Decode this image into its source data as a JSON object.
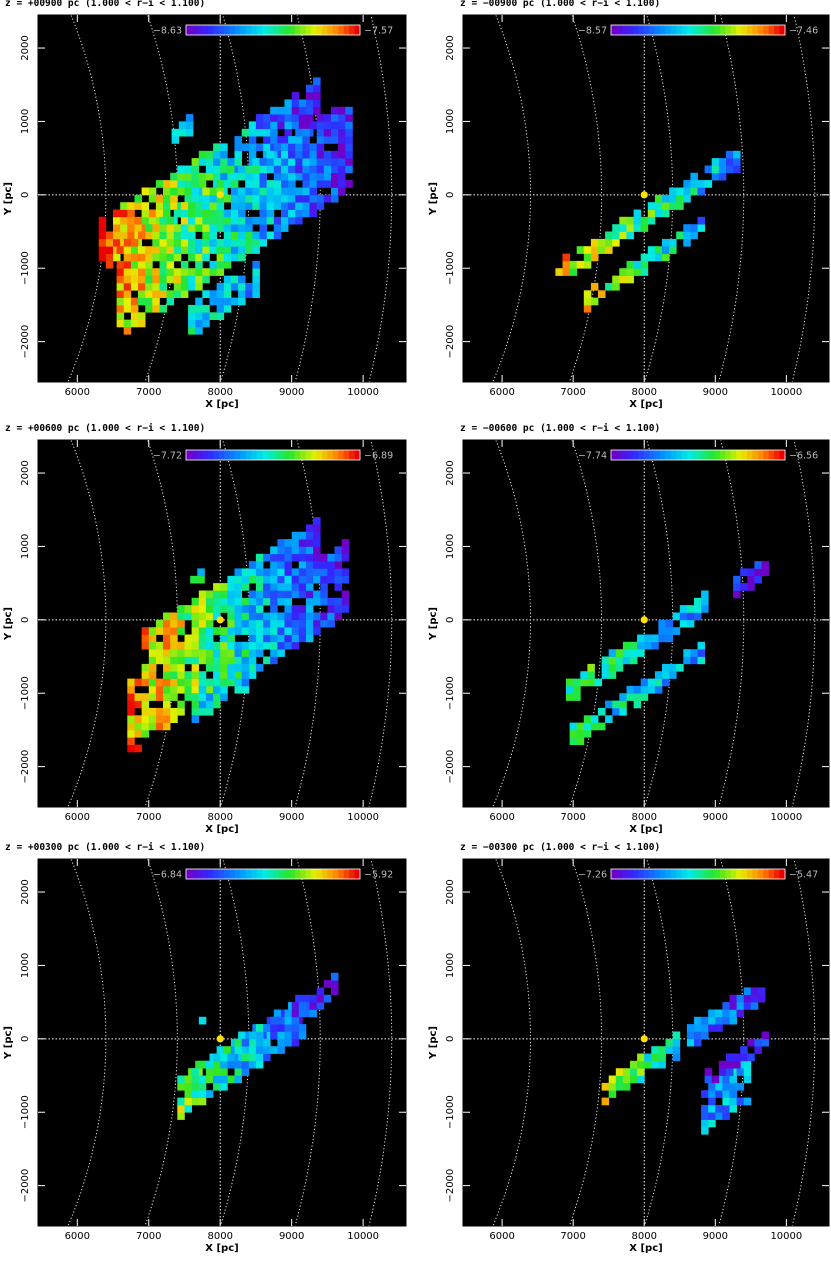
{
  "figure": {
    "x_axis_label": "X [pc]",
    "y_axis_label": "Y [pc]"
  },
  "chart_data": [
    {
      "type": "heatmap",
      "title": "z = +00900 pc (1.000 < r−i < 1.100)",
      "xlabel": "X [pc]",
      "ylabel": "Y [pc]",
      "xlim": [
        5450,
        10600
      ],
      "ylim": [
        -2550,
        2450
      ],
      "xticks": [
        6000,
        7000,
        8000,
        9000,
        10000
      ],
      "yticks": [
        -2000,
        -1000,
        0,
        1000,
        2000
      ],
      "colorbar": {
        "min": -8.63,
        "max": -7.57,
        "min_label": "−8.63",
        "max_label": "−7.57"
      },
      "sun": [
        8000,
        0
      ],
      "regions": [
        {
          "x0": 6300,
          "x1": 9400,
          "yc": 300,
          "width": 600,
          "v_start": 0.9,
          "v_end": 0.05
        },
        {
          "x0": 6550,
          "x1": 9800,
          "yc": -300,
          "width": 1150,
          "v_start": 0.82,
          "v_end": 0.08
        },
        {
          "x0": 7550,
          "x1": 8550,
          "yc": -1380,
          "width": 380,
          "v_start": 0.4,
          "v_end": 0.3
        },
        {
          "x0": 7320,
          "x1": 7530,
          "yc": 900,
          "width": 120,
          "v_start": 0.45,
          "v_end": 0.45
        }
      ]
    },
    {
      "type": "heatmap",
      "title": "z = −00900 pc (1.000 < r−i < 1.100)",
      "xlabel": "X [pc]",
      "ylabel": "Y [pc]",
      "xlim": [
        5450,
        10600
      ],
      "ylim": [
        -2550,
        2450
      ],
      "xticks": [
        6000,
        7000,
        8000,
        9000,
        10000
      ],
      "yticks": [
        -2000,
        -1000,
        0,
        1000,
        2000
      ],
      "colorbar": {
        "min": -8.57,
        "max": -7.46,
        "min_label": "−8.57",
        "max_label": "−7.46"
      },
      "sun": [
        8000,
        0
      ],
      "regions": [
        {
          "x0": 6750,
          "x1": 9350,
          "yc": -250,
          "width": 200,
          "v_start": 0.8,
          "v_end": 0.25
        },
        {
          "x0": 7150,
          "x1": 8850,
          "yc": -900,
          "width": 160,
          "v_start": 0.75,
          "v_end": 0.3
        }
      ]
    },
    {
      "type": "heatmap",
      "title": "z = +00600 pc (1.000 < r−i < 1.100)",
      "xlabel": "X [pc]",
      "ylabel": "Y [pc]",
      "xlim": [
        5450,
        10600
      ],
      "ylim": [
        -2550,
        2450
      ],
      "xticks": [
        6000,
        7000,
        8000,
        9000,
        10000
      ],
      "yticks": [
        -2000,
        -1000,
        0,
        1000,
        2000
      ],
      "colorbar": {
        "min": -7.72,
        "max": -6.89,
        "min_label": "−7.72",
        "max_label": "−6.89"
      },
      "sun": [
        8000,
        0
      ],
      "regions": [
        {
          "x0": 6900,
          "x1": 9400,
          "yc": 350,
          "width": 500,
          "v_start": 0.85,
          "v_end": 0.1
        },
        {
          "x0": 6700,
          "x1": 9800,
          "yc": -350,
          "width": 900,
          "v_start": 0.85,
          "v_end": 0.05
        },
        {
          "x0": 7600,
          "x1": 8400,
          "yc": -950,
          "width": 280,
          "v_start": 0.45,
          "v_end": 0.35
        },
        {
          "x0": 7580,
          "x1": 7720,
          "yc": 620,
          "width": 100,
          "v_start": 0.5,
          "v_end": 0.5
        }
      ]
    },
    {
      "type": "heatmap",
      "title": "z = −00600 pc (1.000 < r−i < 1.100)",
      "xlabel": "X [pc]",
      "ylabel": "Y [pc]",
      "xlim": [
        5450,
        10600
      ],
      "ylim": [
        -2550,
        2450
      ],
      "xticks": [
        6000,
        7000,
        8000,
        9000,
        10000
      ],
      "yticks": [
        -2000,
        -1000,
        0,
        1000,
        2000
      ],
      "colorbar": {
        "min": -7.74,
        "max": -6.56,
        "min_label": "−7.74",
        "max_label": "−6.56"
      },
      "sun": [
        8000,
        0
      ],
      "regions": [
        {
          "x0": 6900,
          "x1": 8900,
          "yc": -350,
          "width": 220,
          "v_start": 0.55,
          "v_end": 0.3
        },
        {
          "x0": 6950,
          "x1": 8800,
          "yc": -1000,
          "width": 180,
          "v_start": 0.5,
          "v_end": 0.3
        },
        {
          "x0": 9250,
          "x1": 9700,
          "yc": 600,
          "width": 180,
          "v_start": 0.05,
          "v_end": 0.05
        }
      ]
    },
    {
      "type": "heatmap",
      "title": "z = +00300 pc (1.000 < r−i < 1.100)",
      "xlabel": "X [pc]",
      "ylabel": "Y [pc]",
      "xlim": [
        5450,
        10600
      ],
      "ylim": [
        -2550,
        2450
      ],
      "xticks": [
        6000,
        7000,
        8000,
        9000,
        10000
      ],
      "yticks": [
        -2000,
        -1000,
        0,
        1000,
        2000
      ],
      "colorbar": {
        "min": -6.84,
        "max": -5.92,
        "min_label": "−6.84",
        "max_label": "−5.92"
      },
      "sun": [
        8000,
        0
      ],
      "regions": [
        {
          "x0": 7550,
          "x1": 9650,
          "yc": 100,
          "width": 250,
          "v_start": 0.6,
          "v_end": 0.05
        },
        {
          "x0": 7400,
          "x1": 9150,
          "yc": -250,
          "width": 420,
          "v_start": 0.62,
          "v_end": 0.15
        },
        {
          "x0": 7700,
          "x1": 7800,
          "yc": 330,
          "width": 80,
          "v_start": 0.4,
          "v_end": 0.4
        }
      ]
    },
    {
      "type": "heatmap",
      "title": "z = −00300 pc (1.000 < r−i < 1.100)",
      "xlabel": "X [pc]",
      "ylabel": "Y [pc]",
      "xlim": [
        5450,
        10600
      ],
      "ylim": [
        -2550,
        2450
      ],
      "xticks": [
        6000,
        7000,
        8000,
        9000,
        10000
      ],
      "yticks": [
        -2000,
        -1000,
        0,
        1000,
        2000
      ],
      "colorbar": {
        "min": -7.26,
        "max": -5.47,
        "min_label": "−7.26",
        "max_label": "−5.47"
      },
      "sun": [
        8000,
        0
      ],
      "regions": [
        {
          "x0": 7400,
          "x1": 9700,
          "yc": 0,
          "width": 230,
          "v_start": 0.68,
          "v_end": 0.05
        },
        {
          "x0": 8800,
          "x1": 9450,
          "yc": -750,
          "width": 500,
          "v_start": 0.3,
          "v_end": 0.3
        },
        {
          "x0": 8850,
          "x1": 9750,
          "yc": -250,
          "width": 120,
          "v_start": 0.05,
          "v_end": 0.05
        }
      ]
    }
  ]
}
